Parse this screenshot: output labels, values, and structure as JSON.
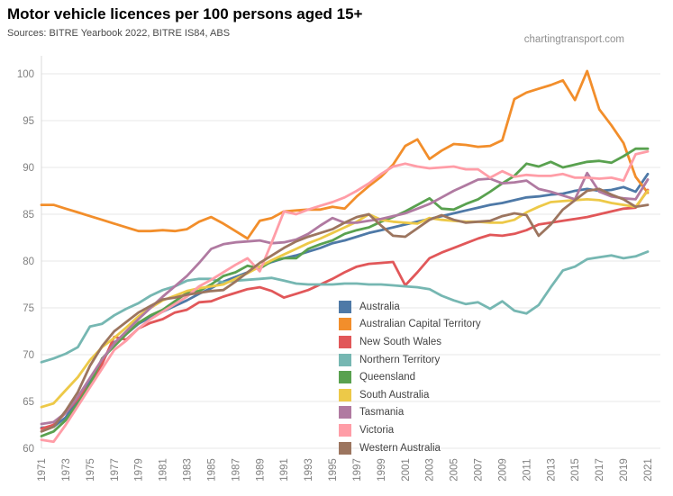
{
  "header": {
    "title": "Motor vehicle licences per 100 persons aged 15+",
    "subtitle": "Sources: BITRE Yearbook 2022, BITRE IS84, ABS",
    "watermark": "chartingtransport.com"
  },
  "axes": {
    "y_tick_labels": [
      "60",
      "65",
      "70",
      "75",
      "80",
      "85",
      "90",
      "95",
      "100"
    ],
    "x_tick_labels": [
      "1971",
      "1973",
      "1975",
      "1977",
      "1979",
      "1981",
      "1983",
      "1985",
      "1987",
      "1989",
      "1991",
      "1993",
      "1995",
      "1997",
      "1999",
      "2001",
      "2003",
      "2005",
      "2007",
      "2009",
      "2011",
      "2013",
      "2015",
      "2017",
      "2019",
      "2021"
    ]
  },
  "colors": {
    "grid": "#e7e7e7",
    "axis_line": "#d9d9d9",
    "tick_text": "#818181"
  },
  "chart_data": {
    "type": "line",
    "title": "Motor vehicle licences per 100 persons aged 15+",
    "xlabel": "",
    "ylabel": "",
    "x_start": 1971,
    "x_end": 2021,
    "x_step": 1,
    "ylim": [
      60,
      100
    ],
    "y_ticks": [
      60,
      65,
      70,
      75,
      80,
      85,
      90,
      95,
      100
    ],
    "grid": "horizontal",
    "legend_position": "center-right-overlay",
    "series": [
      {
        "name": "Australia",
        "color": "#4e79a7",
        "values": [
          62.2,
          62.3,
          63.3,
          65.2,
          67.2,
          69.3,
          71.3,
          72.2,
          73.3,
          74.0,
          74.6,
          75.2,
          75.8,
          76.5,
          77.1,
          77.8,
          78.3,
          78.8,
          79.4,
          79.9,
          80.3,
          80.6,
          81.0,
          81.4,
          81.9,
          82.2,
          82.6,
          83.0,
          83.3,
          83.6,
          83.9,
          84.2,
          84.5,
          84.8,
          85.1,
          85.4,
          85.7,
          86.0,
          86.2,
          86.5,
          86.8,
          86.9,
          87.1,
          87.2,
          87.5,
          87.7,
          87.5,
          87.6,
          87.9,
          87.4,
          89.3
        ]
      },
      {
        "name": "Australian Capital Territory",
        "color": "#f28e2b",
        "values": [
          86.0,
          86.0,
          85.6,
          85.2,
          84.8,
          84.4,
          84.0,
          83.6,
          83.2,
          83.2,
          83.3,
          83.2,
          83.4,
          84.2,
          84.7,
          84.0,
          83.2,
          82.4,
          84.3,
          84.6,
          85.3,
          85.4,
          85.5,
          85.5,
          85.8,
          85.6,
          86.9,
          88.0,
          89.0,
          90.3,
          92.3,
          93.0,
          90.9,
          91.8,
          92.5,
          92.4,
          92.2,
          92.3,
          92.9,
          97.3,
          98.0,
          98.4,
          98.8,
          99.3,
          97.2,
          100.3,
          96.2,
          94.5,
          92.6,
          89.0,
          87.3
        ]
      },
      {
        "name": "New South Wales",
        "color": "#e15759",
        "values": [
          62.1,
          62.5,
          63.8,
          65.3,
          66.8,
          69.0,
          71.9,
          71.6,
          72.8,
          73.4,
          73.8,
          74.5,
          74.8,
          75.6,
          75.7,
          76.2,
          76.6,
          77.0,
          77.2,
          76.8,
          76.1,
          76.5,
          76.9,
          77.5,
          78.1,
          78.8,
          79.4,
          79.7,
          79.8,
          79.9,
          77.4,
          78.8,
          80.3,
          80.9,
          81.4,
          81.9,
          82.4,
          82.8,
          82.7,
          82.9,
          83.3,
          83.9,
          84.1,
          84.3,
          84.5,
          84.7,
          85.0,
          85.3,
          85.6,
          85.7,
          87.6
        ]
      },
      {
        "name": "Northern Territory",
        "color": "#76b7b2",
        "values": [
          69.2,
          69.6,
          70.1,
          70.8,
          73.0,
          73.3,
          74.2,
          74.9,
          75.5,
          76.3,
          76.9,
          77.3,
          77.9,
          78.1,
          78.1,
          77.7,
          77.9,
          78.0,
          78.1,
          78.2,
          77.9,
          77.6,
          77.5,
          77.5,
          77.5,
          77.6,
          77.6,
          77.5,
          77.5,
          77.4,
          77.3,
          77.2,
          77.0,
          76.3,
          75.8,
          75.4,
          75.6,
          74.9,
          75.7,
          74.7,
          74.4,
          75.3,
          77.2,
          79.0,
          79.4,
          80.2,
          80.4,
          80.6,
          80.3,
          80.5,
          81.0
        ]
      },
      {
        "name": "Queensland",
        "color": "#59a14f",
        "values": [
          61.3,
          61.8,
          63.0,
          64.8,
          66.8,
          69.6,
          70.9,
          72.2,
          73.4,
          74.2,
          74.8,
          75.7,
          76.6,
          76.8,
          77.5,
          78.4,
          78.8,
          79.5,
          79.2,
          80.0,
          80.3,
          80.3,
          81.3,
          81.8,
          82.2,
          82.9,
          83.3,
          83.6,
          84.2,
          84.7,
          85.3,
          86.0,
          86.7,
          85.6,
          85.5,
          86.1,
          86.6,
          87.4,
          88.3,
          89.1,
          90.4,
          90.1,
          90.6,
          90.0,
          90.3,
          90.6,
          90.7,
          90.5,
          91.2,
          92.0,
          92.0
        ]
      },
      {
        "name": "South Australia",
        "color": "#edc948",
        "values": [
          64.4,
          64.8,
          66.2,
          67.6,
          69.4,
          70.8,
          71.8,
          72.9,
          74.1,
          75.0,
          75.8,
          76.3,
          76.8,
          77.1,
          77.3,
          77.5,
          78.1,
          78.7,
          79.4,
          80.1,
          80.7,
          81.3,
          81.9,
          82.4,
          83.0,
          83.6,
          84.2,
          85.0,
          84.4,
          84.2,
          84.1,
          84.0,
          84.6,
          84.4,
          84.3,
          84.2,
          84.2,
          84.1,
          84.1,
          84.4,
          85.2,
          85.8,
          86.3,
          86.4,
          86.5,
          86.6,
          86.5,
          86.2,
          86.0,
          85.8,
          87.5
        ]
      },
      {
        "name": "Tasmania",
        "color": "#b07aa1",
        "values": [
          62.6,
          62.8,
          63.8,
          65.5,
          67.5,
          69.5,
          71.2,
          72.5,
          73.8,
          75.0,
          76.2,
          77.3,
          78.4,
          79.8,
          81.3,
          81.8,
          82.0,
          82.1,
          82.2,
          81.9,
          82.0,
          82.3,
          82.9,
          83.8,
          84.6,
          84.1,
          84.1,
          84.3,
          84.5,
          84.8,
          85.1,
          85.6,
          86.1,
          86.8,
          87.5,
          88.1,
          88.7,
          88.8,
          88.3,
          88.4,
          88.6,
          87.7,
          87.4,
          87.0,
          86.6,
          89.4,
          87.4,
          86.9,
          86.7,
          86.6,
          88.7
        ]
      },
      {
        "name": "Victoria",
        "color": "#ff9da7",
        "values": [
          60.9,
          60.7,
          62.5,
          64.5,
          66.5,
          68.5,
          70.5,
          71.5,
          72.8,
          73.8,
          74.6,
          75.4,
          76.2,
          77.3,
          78.0,
          78.8,
          79.6,
          80.3,
          78.9,
          82.0,
          85.3,
          85.0,
          85.5,
          85.9,
          86.3,
          86.8,
          87.5,
          88.3,
          89.3,
          90.1,
          90.4,
          90.1,
          89.9,
          90.0,
          90.1,
          89.8,
          89.8,
          88.9,
          89.6,
          89.0,
          89.2,
          89.1,
          89.1,
          89.3,
          88.9,
          88.9,
          88.8,
          88.9,
          88.6,
          91.4,
          91.7
        ]
      },
      {
        "name": "Western Australia",
        "color": "#9c755f",
        "values": [
          61.8,
          62.3,
          64.0,
          66.0,
          68.8,
          70.9,
          72.5,
          73.5,
          74.5,
          75.2,
          75.9,
          76.1,
          76.4,
          76.6,
          76.8,
          76.9,
          77.8,
          78.8,
          79.8,
          80.6,
          81.4,
          82.1,
          82.6,
          83.0,
          83.4,
          84.1,
          84.7,
          85.0,
          83.8,
          82.7,
          82.6,
          83.5,
          84.4,
          84.9,
          84.4,
          84.1,
          84.2,
          84.3,
          84.8,
          85.1,
          84.9,
          82.7,
          83.9,
          85.5,
          86.5,
          87.5,
          87.7,
          87.1,
          86.6,
          85.8,
          86.0
        ]
      }
    ]
  }
}
